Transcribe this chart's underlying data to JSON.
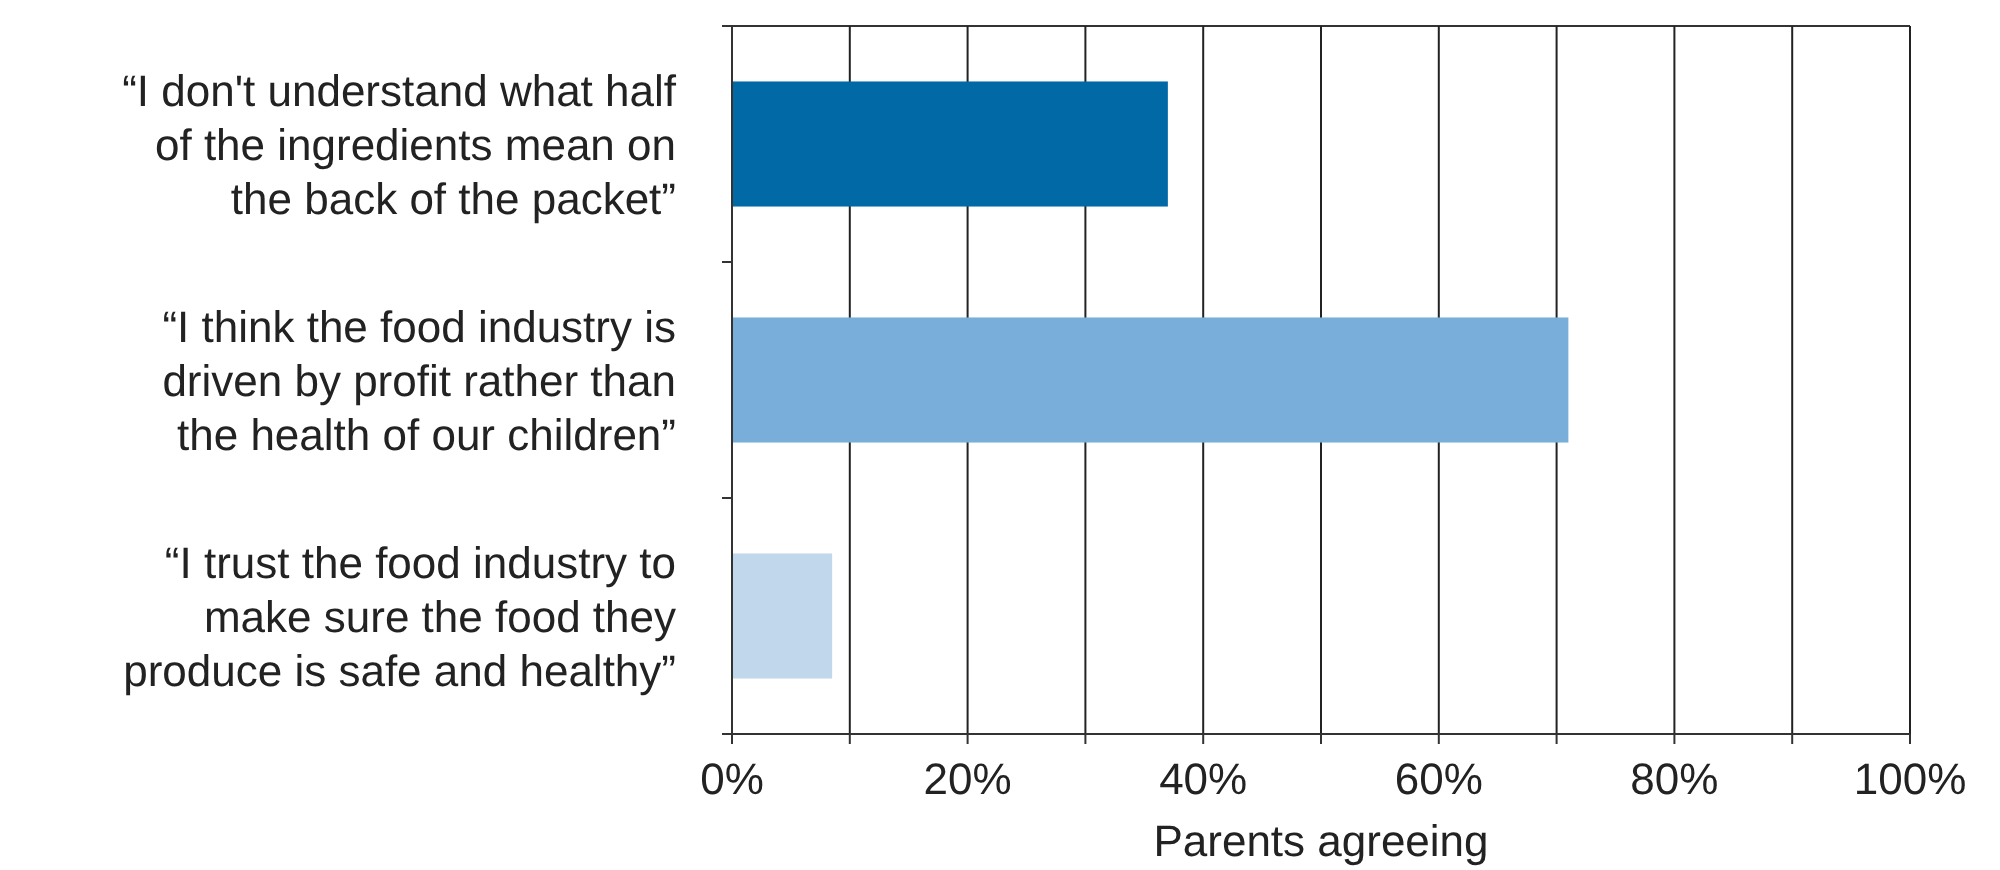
{
  "chart_data": {
    "type": "bar",
    "orientation": "horizontal",
    "xlabel": "Parents agreeing",
    "categories": [
      "“I don't understand what half of the ingredients mean on the back of the packet”",
      "“I think the food industry is driven by profit rather than the health of our children”",
      "“I trust the food industry to make sure the food they produce is safe and healthy”"
    ],
    "values": [
      37,
      71,
      8.5
    ],
    "colors": [
      "#0069a6",
      "#78aed9",
      "#c0d7ec"
    ],
    "xlim": [
      0,
      100
    ],
    "xticks": [
      {
        "value": 0,
        "label": "0%"
      },
      {
        "value": 10,
        "label": null
      },
      {
        "value": 20,
        "label": "20%"
      },
      {
        "value": 30,
        "label": null
      },
      {
        "value": 40,
        "label": "40%"
      },
      {
        "value": 50,
        "label": null
      },
      {
        "value": 60,
        "label": "60%"
      },
      {
        "value": 70,
        "label": null
      },
      {
        "value": 80,
        "label": "80%"
      },
      {
        "value": 90,
        "label": null
      },
      {
        "value": 100,
        "label": "100%"
      }
    ],
    "grid": "x"
  }
}
